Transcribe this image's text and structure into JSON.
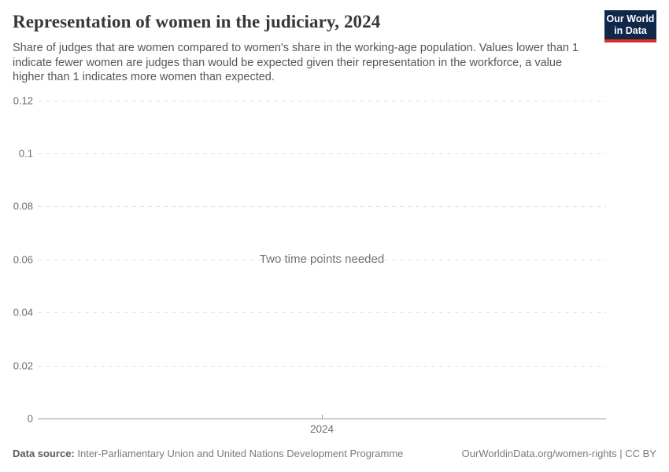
{
  "header": {
    "title": "Representation of women in the judiciary, 2024",
    "subtitle": "Share of judges that are women compared to women's share in the working-age population. Values lower than 1 indicate fewer women are judges than would be expected given their representation in the workforce, a value higher than 1 indicates more women than expected.",
    "logo": {
      "line1": "Our World",
      "line2": "in Data",
      "bg_color": "#12284a",
      "stripe_color": "#dc2e27"
    }
  },
  "chart_data": {
    "type": "line",
    "title": "Representation of women in the judiciary, 2024",
    "series": [],
    "message": "Two time points needed",
    "xlabel": "",
    "ylabel": "",
    "ylim": [
      0,
      0.12
    ],
    "yticks": [
      {
        "value": 0,
        "label": "0"
      },
      {
        "value": 0.02,
        "label": "0.02"
      },
      {
        "value": 0.04,
        "label": "0.04"
      },
      {
        "value": 0.06,
        "label": "0.06"
      },
      {
        "value": 0.08,
        "label": "0.08"
      },
      {
        "value": 0.1,
        "label": "0.1"
      },
      {
        "value": 0.12,
        "label": "0.12"
      }
    ],
    "xticks": [
      {
        "fraction": 0.5,
        "label": "2024"
      }
    ],
    "grid": "horizontal-dashed",
    "legend": "none",
    "grid_color": "#e2e2e2",
    "axis_color": "#9a9a9a"
  },
  "footer": {
    "source_label": "Data source:",
    "source_value": "Inter-Parliamentary Union and United Nations Development Programme",
    "link_text": "OurWorldinData.org/women-rights | CC BY"
  }
}
